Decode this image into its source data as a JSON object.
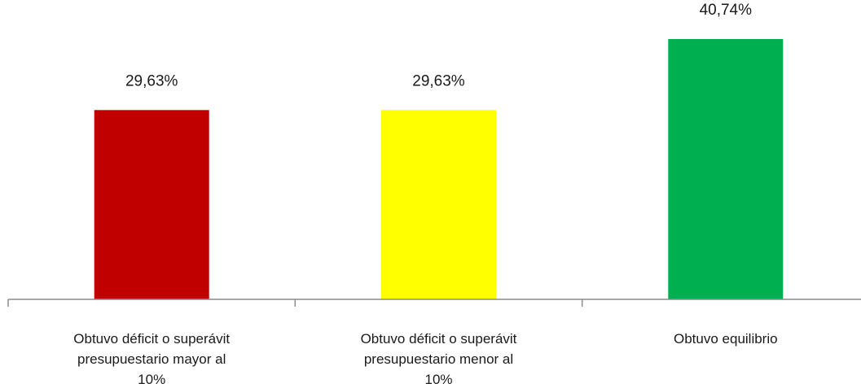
{
  "chart_data": {
    "type": "bar",
    "categories": [
      "Obtuvo déficit o superávit presupuestario mayor al 10%",
      "Obtuvo déficit o superávit presupuestario menor al 10%",
      "Obtuvo equilibrio"
    ],
    "category_lines": [
      [
        "Obtuvo déficit o superávit",
        "presupuestario mayor al",
        "10%"
      ],
      [
        "Obtuvo déficit o superávit",
        "presupuestario menor al",
        "10%"
      ],
      [
        "Obtuvo equilibrio"
      ]
    ],
    "values": [
      29.63,
      29.63,
      40.74
    ],
    "value_labels": [
      "29,63%",
      "29,63%",
      "40,74%"
    ],
    "colors": [
      "#c00000",
      "#ffff00",
      "#00b050"
    ],
    "title": "",
    "xlabel": "",
    "ylabel": "",
    "ylim": [
      0,
      40.74
    ],
    "grid": false,
    "legend": "none"
  }
}
